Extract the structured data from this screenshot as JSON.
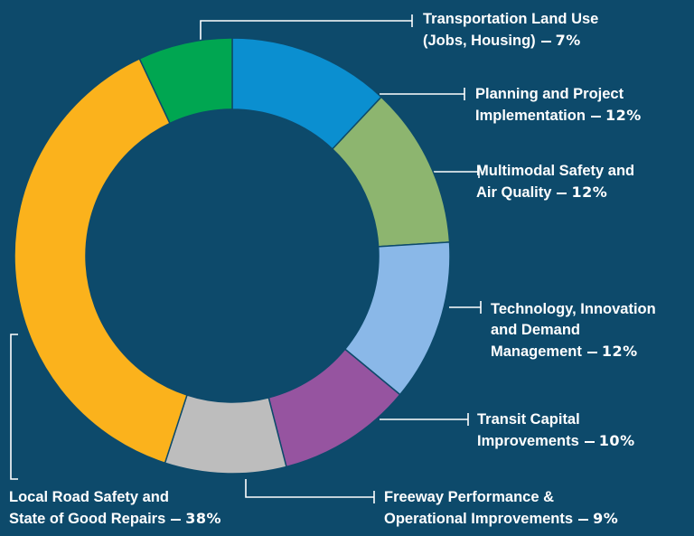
{
  "chart_data": {
    "type": "donut",
    "categories": [
      "Planning and Project\nImplementation",
      "Multimodal Safety and\nAir Quality",
      "Technology, Innovation\nand Demand\nManagement",
      "Transit Capital\nImprovements",
      "Freeway Performance &\nOperational Improvements",
      "Local Road Safety and\nState of Good Repairs",
      "Transportation Land Use\n(Jobs, Housing)"
    ],
    "values": [
      12,
      12,
      12,
      10,
      9,
      38,
      7
    ],
    "value_labels": [
      "12%",
      "12%",
      "12%",
      "10%",
      "9%",
      "38%",
      "7%"
    ],
    "colors": [
      "#0b8fd0",
      "#8db56f",
      "#8ab8e8",
      "#9654a0",
      "#bdbdbd",
      "#fbb21c",
      "#00a651"
    ]
  }
}
